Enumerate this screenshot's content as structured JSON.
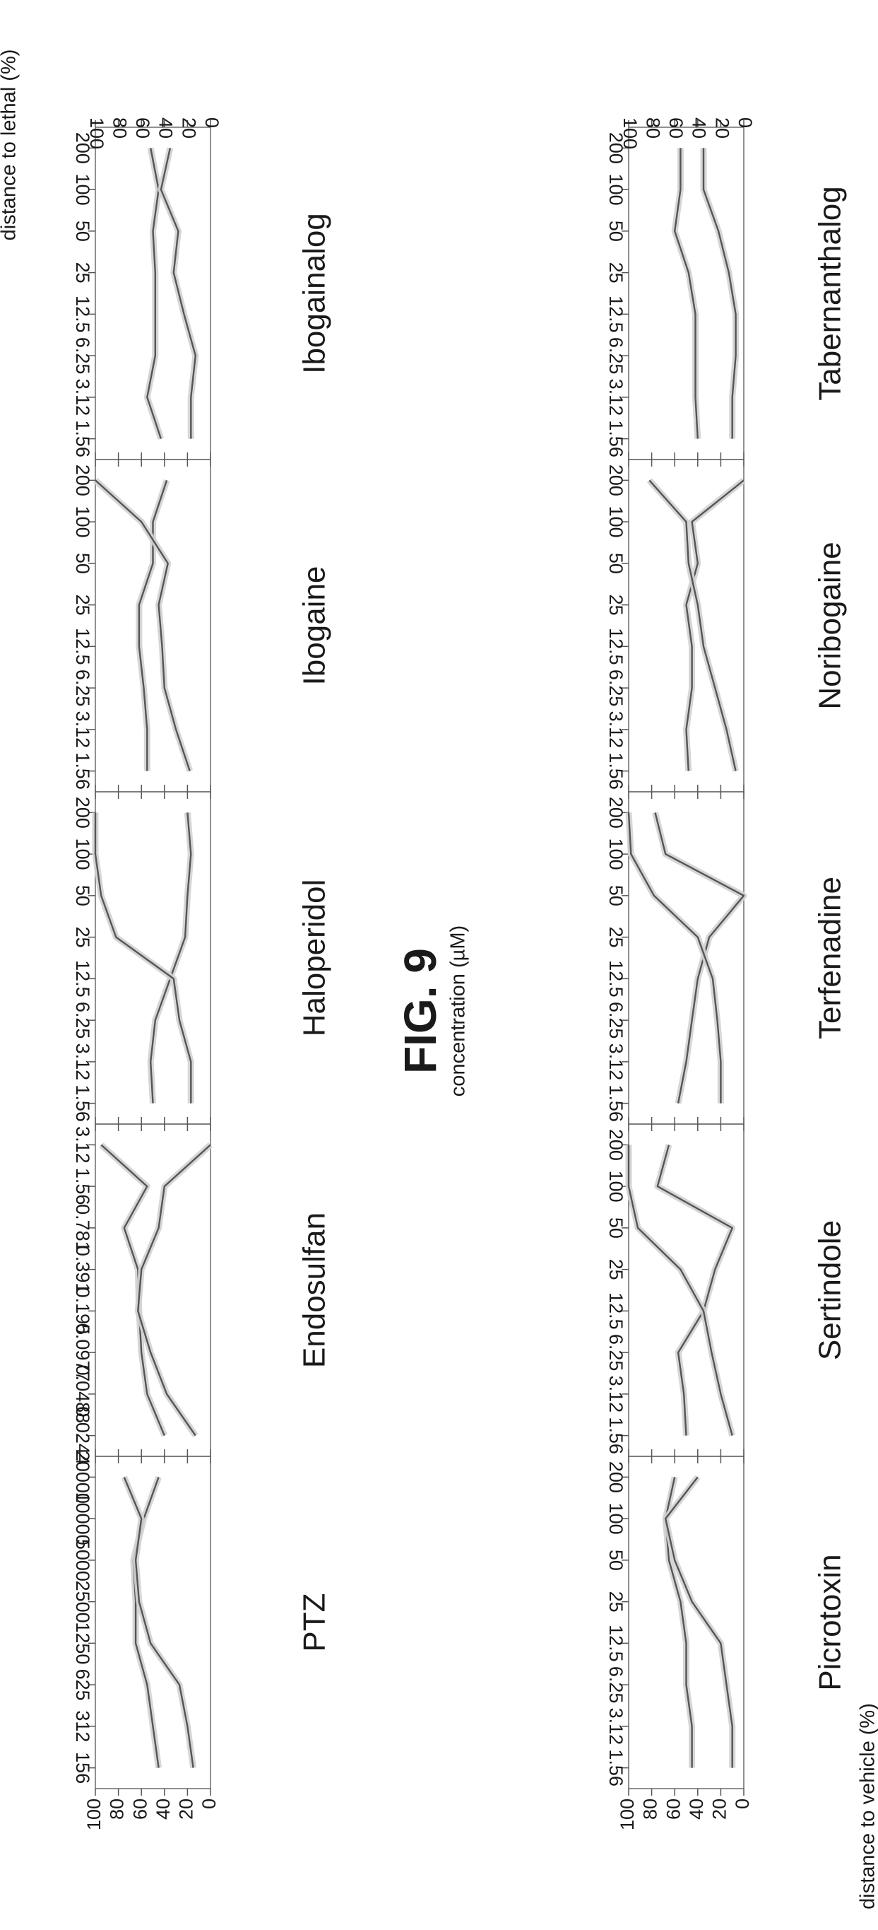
{
  "figure": {
    "title": "FIG. 9",
    "left_axis_label": "distance to vehicle (%)",
    "right_axis_label": "distance to lethal (%)",
    "x_axis_label": "concentration (µM)",
    "y_ticks": [
      "0",
      "20",
      "40",
      "60",
      "80",
      "100"
    ]
  },
  "colors": {
    "line": "#555555",
    "band": "#d2d2d2",
    "frame": "#555555"
  },
  "chart_data": [
    {
      "type": "line",
      "title": "PTZ",
      "row": 0,
      "col": 0,
      "categories": [
        "156",
        "312",
        "625",
        "1250",
        "2500",
        "5000",
        "10000",
        "20000"
      ],
      "ylim": [
        0,
        100
      ],
      "grid": false,
      "series": [
        {
          "values": [
            45,
            50,
            55,
            65,
            65,
            67,
            58,
            45
          ]
        },
        {
          "values": [
            15,
            20,
            27,
            52,
            62,
            65,
            60,
            75
          ]
        }
      ]
    },
    {
      "type": "line",
      "title": "Endosulfan",
      "row": 0,
      "col": 1,
      "categories": [
        "0.0244",
        "0.0488",
        "0.0977",
        "0.195",
        "0.391",
        "0.781",
        "1.56",
        "3.12"
      ],
      "ylim": [
        0,
        100
      ],
      "grid": false,
      "series": [
        {
          "values": [
            40,
            55,
            60,
            62,
            63,
            75,
            55,
            95
          ]
        },
        {
          "values": [
            13,
            38,
            52,
            63,
            60,
            45,
            40,
            0
          ]
        }
      ]
    },
    {
      "type": "line",
      "title": "Haloperidol",
      "row": 0,
      "col": 2,
      "categories": [
        "1.56",
        "3.12",
        "6.25",
        "12.5",
        "25",
        "50",
        "100",
        "200"
      ],
      "ylim": [
        0,
        100
      ],
      "grid": false,
      "series": [
        {
          "values": [
            50,
            52,
            48,
            35,
            22,
            20,
            17,
            20
          ]
        },
        {
          "values": [
            17,
            17,
            27,
            32,
            82,
            95,
            100,
            100
          ]
        }
      ]
    },
    {
      "type": "line",
      "title": "Ibogaine",
      "row": 0,
      "col": 3,
      "categories": [
        "1.56",
        "3.12",
        "6.25",
        "12.5",
        "25",
        "50",
        "100",
        "200"
      ],
      "ylim": [
        0,
        100
      ],
      "grid": false,
      "series": [
        {
          "values": [
            55,
            55,
            58,
            62,
            62,
            50,
            50,
            38
          ]
        },
        {
          "values": [
            18,
            30,
            40,
            42,
            45,
            37,
            60,
            100
          ]
        }
      ]
    },
    {
      "type": "line",
      "title": "Ibogainalog",
      "row": 0,
      "col": 4,
      "categories": [
        "1.56",
        "3.12",
        "6.25",
        "12.5",
        "25",
        "50",
        "100",
        "200"
      ],
      "ylim": [
        0,
        100
      ],
      "grid": false,
      "series": [
        {
          "values": [
            43,
            55,
            48,
            48,
            48,
            50,
            45,
            52
          ]
        },
        {
          "values": [
            17,
            17,
            13,
            23,
            32,
            28,
            43,
            35
          ]
        }
      ]
    },
    {
      "type": "line",
      "title": "Picrotoxin",
      "row": 1,
      "col": 0,
      "categories": [
        "1.56",
        "3.12",
        "6.25",
        "12.5",
        "25",
        "50",
        "100",
        "200"
      ],
      "ylim": [
        0,
        100
      ],
      "grid": false,
      "series": [
        {
          "values": [
            45,
            45,
            50,
            50,
            55,
            65,
            68,
            60
          ]
        },
        {
          "values": [
            10,
            10,
            15,
            20,
            45,
            60,
            68,
            40
          ]
        }
      ]
    },
    {
      "type": "line",
      "title": "Sertindole",
      "row": 1,
      "col": 1,
      "categories": [
        "1.56",
        "3.12",
        "6.25",
        "12.5",
        "25",
        "50",
        "100",
        "200"
      ],
      "ylim": [
        0,
        100
      ],
      "grid": false,
      "series": [
        {
          "values": [
            50,
            52,
            57,
            35,
            25,
            10,
            75,
            65
          ]
        },
        {
          "values": [
            10,
            20,
            28,
            35,
            55,
            92,
            100,
            100
          ]
        }
      ]
    },
    {
      "type": "line",
      "title": "Terfenadine",
      "row": 1,
      "col": 2,
      "categories": [
        "1.56",
        "3.12",
        "6.25",
        "12.5",
        "25",
        "50",
        "100",
        "200"
      ],
      "ylim": [
        0,
        100
      ],
      "grid": false,
      "series": [
        {
          "values": [
            57,
            50,
            45,
            40,
            30,
            0,
            68,
            77
          ]
        },
        {
          "values": [
            20,
            20,
            23,
            27,
            40,
            78,
            98,
            100
          ]
        }
      ]
    },
    {
      "type": "line",
      "title": "Noribogaine",
      "row": 1,
      "col": 3,
      "categories": [
        "1.56",
        "3.12",
        "6.25",
        "12.5",
        "25",
        "50",
        "100",
        "200"
      ],
      "ylim": [
        0,
        100
      ],
      "grid": false,
      "series": [
        {
          "values": [
            48,
            50,
            45,
            45,
            50,
            40,
            45,
            0
          ]
        },
        {
          "values": [
            7,
            15,
            25,
            35,
            40,
            48,
            50,
            82
          ]
        }
      ]
    },
    {
      "type": "line",
      "title": "Tabernanthalog",
      "row": 1,
      "col": 4,
      "categories": [
        "1.56",
        "3.12",
        "6.25",
        "12.5",
        "25",
        "50",
        "100",
        "200"
      ],
      "ylim": [
        0,
        100
      ],
      "grid": false,
      "series": [
        {
          "values": [
            40,
            42,
            42,
            42,
            48,
            60,
            55,
            55
          ]
        },
        {
          "values": [
            10,
            10,
            7,
            7,
            13,
            22,
            35,
            35
          ]
        }
      ]
    }
  ]
}
